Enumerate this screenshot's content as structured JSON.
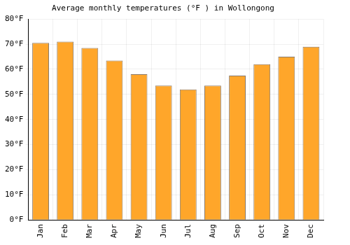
{
  "chart_data": {
    "type": "bar",
    "title": "Average monthly temperatures (°F ) in Wollongong",
    "categories": [
      "Jan",
      "Feb",
      "Mar",
      "Apr",
      "May",
      "Jun",
      "Jul",
      "Aug",
      "Sep",
      "Oct",
      "Nov",
      "Dec"
    ],
    "values": [
      70.5,
      71,
      68.5,
      63.5,
      58,
      53.5,
      52,
      53.5,
      57.5,
      62,
      65,
      69
    ],
    "color": "#ffa62a",
    "ylim": [
      0,
      80
    ],
    "yticks": [
      {
        "value": 0,
        "label": "0°F"
      },
      {
        "value": 10,
        "label": "10°F"
      },
      {
        "value": 20,
        "label": "20°F"
      },
      {
        "value": 30,
        "label": "30°F"
      },
      {
        "value": 40,
        "label": "40°F"
      },
      {
        "value": 50,
        "label": "50°F"
      },
      {
        "value": 60,
        "label": "60°F"
      },
      {
        "value": 70,
        "label": "70°F"
      },
      {
        "value": 80,
        "label": "80°F"
      }
    ],
    "grid": true
  }
}
